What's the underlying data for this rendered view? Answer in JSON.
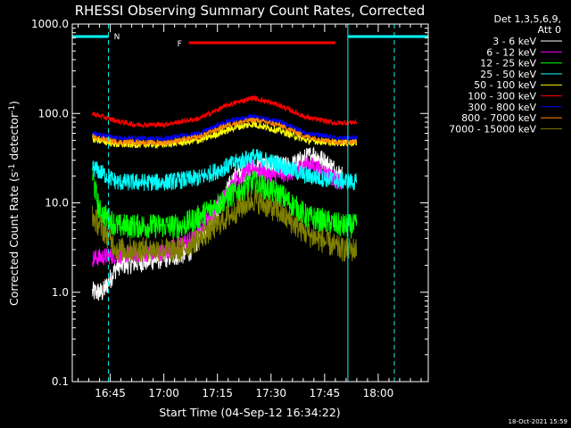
{
  "chart_data": {
    "type": "line",
    "title": "RHESSI Observing Summary Count Rates, Corrected",
    "xlabel": "Start Time (04-Sep-12 16:34:22)",
    "ylabel_main": "Corrected Count Rate (s",
    "ylabel_sup": "-1",
    "ylabel_mid": " detector",
    "ylabel_end": ")",
    "y_scale": "log",
    "ylim": [
      0.1,
      1000.0
    ],
    "y_tick_labels": [
      "0.1",
      "1.0",
      "10.0",
      "100.0",
      "1000.0"
    ],
    "x_range_minutes": [
      "16:34:22",
      "18:14:00"
    ],
    "x_tick_labels": [
      "16:45",
      "17:00",
      "17:15",
      "17:30",
      "17:45",
      "18:00"
    ],
    "x_tick_values": [
      "16:45",
      "17:00",
      "17:15",
      "17:30",
      "17:45",
      "18:00"
    ],
    "detector_info_line1": "Det 1,3,5,6,9,",
    "detector_info_line2": "Att 0",
    "flag_labels": {
      "night": "N",
      "flare": "F"
    },
    "flag_segments": {
      "night": [
        [
          "16:34:22",
          "16:44:30"
        ],
        [
          "17:51:30",
          "18:14:00"
        ]
      ],
      "flare": [
        [
          "17:07:00",
          "17:48:00"
        ]
      ]
    },
    "vertical_markers": {
      "solid": [
        "16:34:22",
        "17:51:30"
      ],
      "dashed": [
        "16:44:30",
        "18:04:30"
      ]
    },
    "data_start": "16:40:00",
    "data_end": "17:54:00",
    "date_stamp": "18-Oct-2021 15:59",
    "series": [
      {
        "name": "3 - 6 keV",
        "color": "#ffffff",
        "points": [
          [
            "16:40",
            1.0
          ],
          [
            "16:43",
            1.0
          ],
          [
            "16:47",
            2.0
          ],
          [
            "17:00",
            2.4
          ],
          [
            "17:07",
            2.8
          ],
          [
            "17:14",
            7.0
          ],
          [
            "17:20",
            20.0
          ],
          [
            "17:25",
            25.0
          ],
          [
            "17:30",
            26.0
          ],
          [
            "17:35",
            25.0
          ],
          [
            "17:42",
            35.0
          ],
          [
            "17:47",
            25.0
          ],
          [
            "17:50",
            20.0
          ]
        ]
      },
      {
        "name": "6 - 12 keV",
        "color": "#ff00ff",
        "points": [
          [
            "16:40",
            2.4
          ],
          [
            "16:47",
            2.6
          ],
          [
            "17:00",
            2.8
          ],
          [
            "17:08",
            4.0
          ],
          [
            "17:15",
            9.0
          ],
          [
            "17:20",
            18.0
          ],
          [
            "17:25",
            25.0
          ],
          [
            "17:30",
            20.0
          ],
          [
            "17:36",
            22.0
          ],
          [
            "17:40",
            28.0
          ],
          [
            "17:45",
            22.0
          ],
          [
            "17:50",
            16.0
          ]
        ]
      },
      {
        "name": "12 - 25 keV",
        "color": "#00ff00",
        "points": [
          [
            "16:40",
            20.0
          ],
          [
            "16:42",
            8.0
          ],
          [
            "16:47",
            5.5
          ],
          [
            "17:05",
            5.5
          ],
          [
            "17:10",
            7.0
          ],
          [
            "17:17",
            11.0
          ],
          [
            "17:25",
            17.0
          ],
          [
            "17:33",
            12.0
          ],
          [
            "17:40",
            7.0
          ],
          [
            "17:50",
            5.5
          ],
          [
            "17:54",
            5.5
          ]
        ]
      },
      {
        "name": "25 - 50 keV",
        "color": "#00ffff",
        "points": [
          [
            "16:40",
            25.0
          ],
          [
            "16:47",
            17.0
          ],
          [
            "17:00",
            17.0
          ],
          [
            "17:10",
            19.0
          ],
          [
            "17:20",
            28.0
          ],
          [
            "17:25",
            33.0
          ],
          [
            "17:32",
            27.0
          ],
          [
            "17:40",
            20.0
          ],
          [
            "17:48",
            18.0
          ],
          [
            "17:54",
            17.0
          ]
        ]
      },
      {
        "name": "50 - 100 keV",
        "color": "#ffff00",
        "points": [
          [
            "16:40",
            52.0
          ],
          [
            "16:47",
            45.0
          ],
          [
            "17:00",
            45.0
          ],
          [
            "17:10",
            50.0
          ],
          [
            "17:20",
            70.0
          ],
          [
            "17:25",
            76.0
          ],
          [
            "17:32",
            65.0
          ],
          [
            "17:40",
            50.0
          ],
          [
            "17:48",
            47.0
          ],
          [
            "17:54",
            47.0
          ]
        ]
      },
      {
        "name": "100 - 300 keV",
        "color": "#ff0000",
        "points": [
          [
            "16:40",
            100.0
          ],
          [
            "16:47",
            82.0
          ],
          [
            "16:52",
            75.0
          ],
          [
            "17:00",
            75.0
          ],
          [
            "17:10",
            88.0
          ],
          [
            "17:18",
            125.0
          ],
          [
            "17:25",
            150.0
          ],
          [
            "17:32",
            125.0
          ],
          [
            "17:40",
            90.0
          ],
          [
            "17:48",
            78.0
          ],
          [
            "17:54",
            80.0
          ]
        ]
      },
      {
        "name": "300 - 800 keV",
        "color": "#0000ff",
        "points": [
          [
            "16:40",
            60.0
          ],
          [
            "16:47",
            53.0
          ],
          [
            "17:00",
            52.0
          ],
          [
            "17:10",
            60.0
          ],
          [
            "17:18",
            82.0
          ],
          [
            "17:25",
            93.0
          ],
          [
            "17:32",
            82.0
          ],
          [
            "17:40",
            60.0
          ],
          [
            "17:48",
            53.0
          ],
          [
            "17:54",
            53.0
          ]
        ]
      },
      {
        "name": "800 - 7000 keV",
        "color": "#ff8800",
        "points": [
          [
            "16:40",
            55.0
          ],
          [
            "16:47",
            48.0
          ],
          [
            "17:00",
            47.0
          ],
          [
            "17:10",
            55.0
          ],
          [
            "17:18",
            75.0
          ],
          [
            "17:25",
            85.0
          ],
          [
            "17:32",
            75.0
          ],
          [
            "17:40",
            55.0
          ],
          [
            "17:48",
            48.0
          ],
          [
            "17:54",
            48.0
          ]
        ]
      },
      {
        "name": "7000 - 15000 keV",
        "color": "#808000",
        "points": [
          [
            "16:40",
            7.0
          ],
          [
            "16:43",
            5.0
          ],
          [
            "16:47",
            3.0
          ],
          [
            "17:05",
            3.0
          ],
          [
            "17:10",
            4.0
          ],
          [
            "17:18",
            7.0
          ],
          [
            "17:25",
            11.0
          ],
          [
            "17:32",
            8.0
          ],
          [
            "17:40",
            4.5
          ],
          [
            "17:50",
            3.0
          ],
          [
            "17:54",
            3.0
          ]
        ]
      }
    ]
  }
}
